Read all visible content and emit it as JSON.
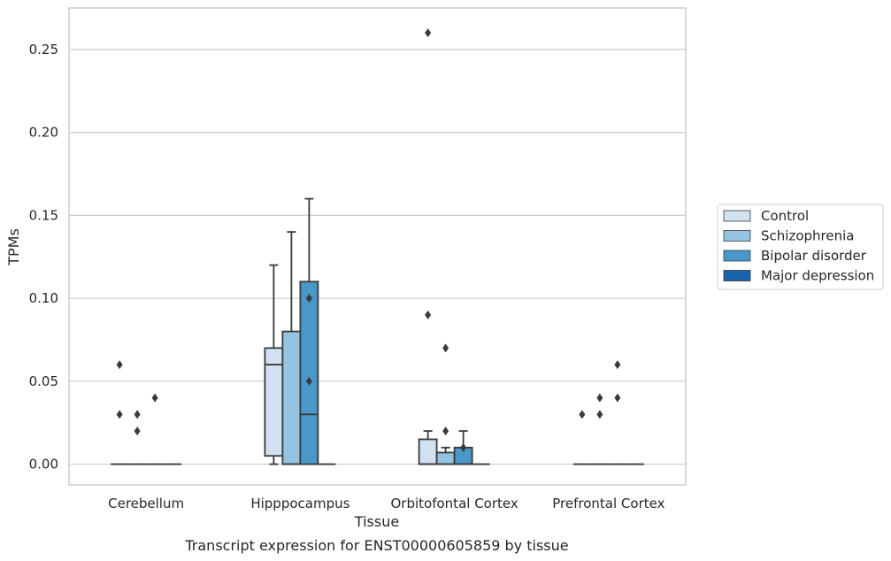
{
  "caption": "Transcript expression for ENST00000605859 by tissue",
  "chart_data": {
    "type": "box",
    "xlabel": "Tissue",
    "ylabel": "TPMs",
    "ylim": [
      -0.0125,
      0.275
    ],
    "yticks": [
      "0.00",
      "0.05",
      "0.10",
      "0.15",
      "0.20",
      "0.25"
    ],
    "grid": "horizontal",
    "legend_position": "right",
    "categories": [
      "Cerebellum",
      "Hipppocampus",
      "Orbitofontal Cortex",
      "Prefrontal Cortex"
    ],
    "series": [
      {
        "name": "Control",
        "color": "#d0e1f2",
        "boxes": [
          {
            "q1": 0,
            "median": 0,
            "q3": 0,
            "whislo": 0,
            "whishi": 0,
            "fliers": [
              0.03,
              0.06
            ]
          },
          {
            "q1": 0.005,
            "median": 0.06,
            "q3": 0.07,
            "whislo": 0,
            "whishi": 0.12,
            "fliers": []
          },
          {
            "q1": 0,
            "median": 0,
            "q3": 0.015,
            "whislo": 0,
            "whishi": 0.02,
            "fliers": [
              0.09,
              0.26
            ]
          },
          {
            "q1": 0,
            "median": 0,
            "q3": 0,
            "whislo": 0,
            "whishi": 0,
            "fliers": [
              0.03
            ]
          }
        ]
      },
      {
        "name": "Schizophrenia",
        "color": "#94c4df",
        "boxes": [
          {
            "q1": 0,
            "median": 0,
            "q3": 0,
            "whislo": 0,
            "whishi": 0,
            "fliers": [
              0.02,
              0.03
            ]
          },
          {
            "q1": 0,
            "median": 0,
            "q3": 0.08,
            "whislo": 0,
            "whishi": 0.14,
            "fliers": []
          },
          {
            "q1": 0,
            "median": 0,
            "q3": 0.007,
            "whislo": 0,
            "whishi": 0.01,
            "fliers": [
              0.02,
              0.07
            ]
          },
          {
            "q1": 0,
            "median": 0,
            "q3": 0,
            "whislo": 0,
            "whishi": 0,
            "fliers": [
              0.03,
              0.04
            ]
          }
        ]
      },
      {
        "name": "Bipolar disorder",
        "color": "#4a98c9",
        "boxes": [
          {
            "q1": 0,
            "median": 0,
            "q3": 0,
            "whislo": 0,
            "whishi": 0,
            "fliers": [
              0.04
            ]
          },
          {
            "q1": 0,
            "median": 0.03,
            "q3": 0.11,
            "whislo": 0,
            "whishi": 0.16,
            "fliers": [
              0.05,
              0.1
            ]
          },
          {
            "q1": 0,
            "median": 0,
            "q3": 0.01,
            "whislo": 0,
            "whishi": 0.02,
            "fliers": [
              0.01
            ]
          },
          {
            "q1": 0,
            "median": 0,
            "q3": 0,
            "whislo": 0,
            "whishi": 0,
            "fliers": [
              0.04,
              0.06
            ]
          }
        ]
      },
      {
        "name": "Major depression",
        "color": "#1764ab",
        "boxes": [
          {
            "q1": 0,
            "median": 0,
            "q3": 0,
            "whislo": 0,
            "whishi": 0,
            "fliers": []
          },
          {
            "q1": 0,
            "median": 0,
            "q3": 0,
            "whislo": 0,
            "whishi": 0,
            "fliers": []
          },
          {
            "q1": 0,
            "median": 0,
            "q3": 0,
            "whislo": 0,
            "whishi": 0,
            "fliers": []
          },
          {
            "q1": 0,
            "median": 0,
            "q3": 0,
            "whislo": 0,
            "whishi": 0,
            "fliers": []
          }
        ]
      }
    ]
  }
}
